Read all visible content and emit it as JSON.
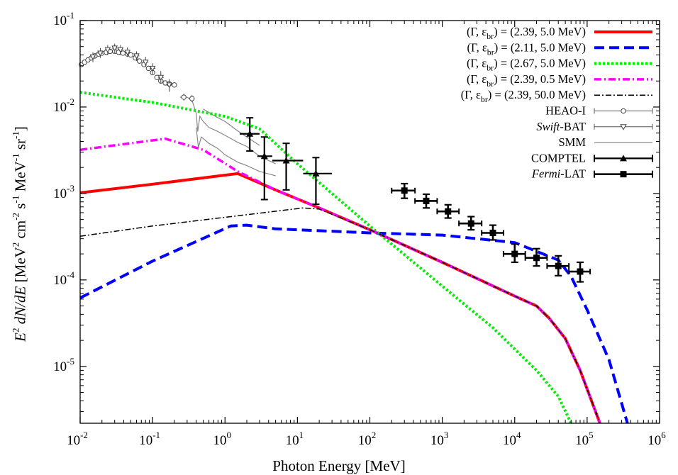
{
  "chart_data": {
    "type": "line",
    "title": "",
    "xlabel": "Photon Energy [MeV]",
    "ylabel_parts": [
      "E",
      "2",
      " dN/dE [MeV",
      "2",
      " cm",
      "-2",
      " s",
      "-1",
      " MeV",
      "-1",
      " sr",
      "-1",
      "]"
    ],
    "xscale": "log",
    "yscale": "log",
    "xlim": [
      0.01,
      1000000
    ],
    "ylim": [
      2.2e-06,
      0.1
    ],
    "x_ticks": [
      {
        "value": 0.01,
        "base": "10",
        "exp": "-2"
      },
      {
        "value": 0.1,
        "base": "10",
        "exp": "-1"
      },
      {
        "value": 1,
        "base": "10",
        "exp": "0"
      },
      {
        "value": 10,
        "base": "10",
        "exp": "1"
      },
      {
        "value": 100,
        "base": "10",
        "exp": "2"
      },
      {
        "value": 1000,
        "base": "10",
        "exp": "3"
      },
      {
        "value": 10000,
        "base": "10",
        "exp": "4"
      },
      {
        "value": 100000,
        "base": "10",
        "exp": "5"
      },
      {
        "value": 1000000,
        "base": "10",
        "exp": "6"
      }
    ],
    "y_ticks": [
      {
        "value": 1e-05,
        "base": "10",
        "exp": "-5"
      },
      {
        "value": 0.0001,
        "base": "10",
        "exp": "-4"
      },
      {
        "value": 0.001,
        "base": "10",
        "exp": "-3"
      },
      {
        "value": 0.01,
        "base": "10",
        "exp": "-2"
      },
      {
        "value": 0.1,
        "base": "10",
        "exp": "-1"
      }
    ],
    "legend_position": "top-right",
    "series": [
      {
        "name": "(Γ, ε_br) = (2.39, 5.0 MeV)",
        "label_head": "(Γ, ε",
        "label_sub": "br",
        "label_tail": ") = (2.39, 5.0 MeV)",
        "color": "#ff0000",
        "style": "solid",
        "width": 4,
        "points": [
          [
            0.01,
            0.00102
          ],
          [
            0.1,
            0.00128
          ],
          [
            1.5,
            0.0017
          ],
          [
            5,
            0.0011
          ],
          [
            20,
            0.00068
          ],
          [
            100,
            0.00038
          ],
          [
            1000,
            0.00016
          ],
          [
            10000,
            6.5e-05
          ],
          [
            20000,
            5e-05
          ],
          [
            30000,
            3.6e-05
          ],
          [
            50000,
            2.1e-05
          ],
          [
            80000,
            9e-06
          ],
          [
            150000,
            2.2e-06
          ]
        ]
      },
      {
        "name": "(Γ, ε_br) = (2.11, 5.0 MeV)",
        "label_head": "(Γ, ε",
        "label_sub": "br",
        "label_tail": ") = (2.11, 5.0 MeV)",
        "color": "#0000ff",
        "style": "dashed",
        "width": 4,
        "points": [
          [
            0.01,
            6.2e-05
          ],
          [
            0.1,
            0.000165
          ],
          [
            1.2,
            0.00042
          ],
          [
            2,
            0.00043
          ],
          [
            5,
            0.00039
          ],
          [
            100,
            0.00035
          ],
          [
            1000,
            0.00033
          ],
          [
            10000,
            0.00027
          ],
          [
            40000,
            0.00017
          ],
          [
            60000,
            0.00011
          ],
          [
            100000,
            4.5e-05
          ],
          [
            200000,
            1.2e-05
          ],
          [
            360000,
            2.2e-06
          ]
        ]
      },
      {
        "name": "(Γ, ε_br) = (2.67, 5.0 MeV)",
        "label_head": "(Γ, ε",
        "label_sub": "br",
        "label_tail": ") = (2.67, 5.0 MeV)",
        "color": "#00ee00",
        "style": "dotted",
        "width": 4,
        "points": [
          [
            0.01,
            0.0148
          ],
          [
            0.1,
            0.0113
          ],
          [
            1,
            0.0078
          ],
          [
            3,
            0.0056
          ],
          [
            10,
            0.0022
          ],
          [
            100,
            0.00042
          ],
          [
            1000,
            8.5e-05
          ],
          [
            5000,
            2.8e-05
          ],
          [
            20000,
            9e-06
          ],
          [
            40000,
            4.5e-06
          ],
          [
            60000,
            2.2e-06
          ]
        ]
      },
      {
        "name": "(Γ, ε_br) = (2.39, 0.5 MeV)",
        "label_head": "(Γ, ε",
        "label_sub": "br",
        "label_tail": ") = (2.39, 0.5 MeV)",
        "color": "#ff00ff",
        "style": "dashdot",
        "width": 3.5,
        "points": [
          [
            0.01,
            0.0032
          ],
          [
            0.15,
            0.0043
          ],
          [
            0.5,
            0.0032
          ],
          [
            1.5,
            0.0018
          ],
          [
            5,
            0.0011
          ],
          [
            20,
            0.00068
          ],
          [
            100,
            0.00038
          ],
          [
            1000,
            0.00016
          ],
          [
            10000,
            6.5e-05
          ],
          [
            20000,
            5e-05
          ],
          [
            30000,
            3.6e-05
          ],
          [
            50000,
            2.1e-05
          ],
          [
            80000,
            9e-06
          ],
          [
            150000,
            2.2e-06
          ]
        ]
      },
      {
        "name": "(Γ, ε_br) = (2.39, 50.0 MeV)",
        "label_head": "(Γ, ε",
        "label_sub": "br",
        "label_tail": ") = (2.39, 50.0 MeV)",
        "color": "#000000",
        "style": "dashdot",
        "width": 1.5,
        "points": [
          [
            0.01,
            0.00032
          ],
          [
            0.1,
            0.00042
          ],
          [
            1,
            0.00053
          ],
          [
            12,
            0.00068
          ],
          [
            20,
            0.00066
          ],
          [
            100,
            0.00038
          ],
          [
            1000,
            0.00016
          ],
          [
            10000,
            6.5e-05
          ],
          [
            20000,
            5e-05
          ],
          [
            30000,
            3.6e-05
          ],
          [
            50000,
            2.1e-05
          ],
          [
            80000,
            9e-06
          ],
          [
            150000,
            2.2e-06
          ]
        ]
      }
    ],
    "smm": {
      "name": "SMM",
      "color": "#888888",
      "curves": [
        [
          [
            0.3,
            0.013
          ],
          [
            0.35,
            0.012
          ],
          [
            0.4,
            0.0085
          ],
          [
            0.42,
            0.0052
          ],
          [
            0.45,
            0.0078
          ],
          [
            0.5,
            0.0068
          ],
          [
            0.6,
            0.0058
          ],
          [
            0.8,
            0.0052
          ],
          [
            1,
            0.0047
          ],
          [
            1.5,
            0.0039
          ],
          [
            2,
            0.0035
          ],
          [
            3,
            0.0027
          ],
          [
            5,
            0.0022
          ]
        ],
        [
          [
            0.4,
            0.0058
          ],
          [
            0.43,
            0.0034
          ],
          [
            0.47,
            0.0045
          ],
          [
            0.6,
            0.0038
          ],
          [
            0.8,
            0.0033
          ],
          [
            1,
            0.0028
          ],
          [
            1.5,
            0.0023
          ],
          [
            2,
            0.0021
          ],
          [
            3,
            0.0018
          ],
          [
            5,
            0.0016
          ]
        ],
        [
          [
            0.5,
            0.0095
          ],
          [
            0.7,
            0.008
          ],
          [
            1,
            0.0068
          ],
          [
            1.5,
            0.0053
          ],
          [
            2,
            0.0045
          ],
          [
            3,
            0.0036
          ]
        ]
      ]
    },
    "heao": {
      "name": "HEAO-I",
      "points": [
        {
          "x": 0.0104,
          "y": 0.031
        },
        {
          "x": 0.0115,
          "y": 0.033
        },
        {
          "x": 0.0128,
          "y": 0.035
        },
        {
          "x": 0.0143,
          "y": 0.037
        },
        {
          "x": 0.016,
          "y": 0.039
        },
        {
          "x": 0.018,
          "y": 0.041
        },
        {
          "x": 0.02,
          "y": 0.042
        },
        {
          "x": 0.023,
          "y": 0.043
        },
        {
          "x": 0.026,
          "y": 0.044
        },
        {
          "x": 0.03,
          "y": 0.044
        },
        {
          "x": 0.034,
          "y": 0.043
        },
        {
          "x": 0.039,
          "y": 0.042
        },
        {
          "x": 0.045,
          "y": 0.041
        },
        {
          "x": 0.05,
          "y": 0.04
        },
        {
          "x": 0.058,
          "y": 0.037
        },
        {
          "x": 0.066,
          "y": 0.034
        },
        {
          "x": 0.076,
          "y": 0.031
        },
        {
          "x": 0.088,
          "y": 0.028
        },
        {
          "x": 0.1,
          "y": 0.025
        },
        {
          "x": 0.115,
          "y": 0.022
        },
        {
          "x": 0.13,
          "y": 0.02
        },
        {
          "x": 0.15,
          "y": 0.019
        },
        {
          "x": 0.17,
          "y": 0.0185
        },
        {
          "x": 0.2,
          "y": 0.018
        },
        {
          "x": 0.27,
          "y": 0.013,
          "xerr": [
            0.24,
            0.3
          ]
        },
        {
          "x": 0.35,
          "y": 0.0125,
          "xerr": [
            0.32,
            0.38
          ]
        }
      ]
    },
    "swift": {
      "name": "Swift-BAT",
      "name_italic": "Swift",
      "name_rest": "-BAT",
      "points": [
        {
          "x": 0.015,
          "y": 0.038,
          "err": [
            0.033,
            0.043
          ]
        },
        {
          "x": 0.019,
          "y": 0.042,
          "err": [
            0.037,
            0.048
          ]
        },
        {
          "x": 0.024,
          "y": 0.046,
          "err": [
            0.04,
            0.052
          ]
        },
        {
          "x": 0.03,
          "y": 0.048,
          "err": [
            0.042,
            0.054
          ]
        },
        {
          "x": 0.036,
          "y": 0.046,
          "err": [
            0.04,
            0.052
          ]
        },
        {
          "x": 0.045,
          "y": 0.043,
          "err": [
            0.038,
            0.049
          ]
        },
        {
          "x": 0.06,
          "y": 0.039,
          "err": [
            0.034,
            0.044
          ]
        },
        {
          "x": 0.08,
          "y": 0.033,
          "err": [
            0.029,
            0.038
          ]
        },
        {
          "x": 0.1,
          "y": 0.028,
          "err": [
            0.024,
            0.032
          ]
        },
        {
          "x": 0.13,
          "y": 0.022,
          "err": [
            0.019,
            0.026
          ]
        },
        {
          "x": 0.17,
          "y": 0.018,
          "err": [
            0.015,
            0.021
          ]
        }
      ]
    },
    "comptel": {
      "name": "COMPTEL",
      "points": [
        {
          "x": 2.2,
          "y": 0.0049,
          "xerr": [
            1.6,
            3
          ],
          "yerr": [
            0.0031,
            0.0075
          ]
        },
        {
          "x": 3.5,
          "y": 0.0027,
          "xerr": [
            2.8,
            4.5
          ],
          "yerr": [
            0.00085,
            0.0045
          ]
        },
        {
          "x": 7,
          "y": 0.0024,
          "xerr": [
            4.5,
            12
          ],
          "yerr": [
            0.0011,
            0.0038
          ]
        },
        {
          "x": 18,
          "y": 0.0017,
          "xerr": [
            12,
            30
          ],
          "yerr": [
            0.00075,
            0.0026
          ]
        }
      ]
    },
    "fermi": {
      "name": "Fermi-LAT",
      "name_italic": "Fermi",
      "name_rest": "-LAT",
      "points": [
        {
          "x": 300,
          "y": 0.00108,
          "xerr": [
            200,
            420
          ],
          "yerr": [
            0.00088,
            0.0013
          ]
        },
        {
          "x": 600,
          "y": 0.00082,
          "xerr": [
            420,
            850
          ],
          "yerr": [
            0.00068,
            0.00098
          ]
        },
        {
          "x": 1200,
          "y": 0.00062,
          "xerr": [
            850,
            1700
          ],
          "yerr": [
            0.00052,
            0.00074
          ]
        },
        {
          "x": 2500,
          "y": 0.00045,
          "xerr": [
            1700,
            3500
          ],
          "yerr": [
            0.00038,
            0.00054
          ]
        },
        {
          "x": 5000,
          "y": 0.00035,
          "xerr": [
            3500,
            7000
          ],
          "yerr": [
            0.00029,
            0.00043
          ]
        },
        {
          "x": 10000,
          "y": 0.0002,
          "xerr": [
            7000,
            14000
          ],
          "yerr": [
            0.00016,
            0.00026
          ]
        },
        {
          "x": 20000,
          "y": 0.00018,
          "xerr": [
            14000,
            28000
          ],
          "yerr": [
            0.000145,
            0.00023
          ]
        },
        {
          "x": 40000,
          "y": 0.000145,
          "xerr": [
            28000,
            56000
          ],
          "yerr": [
            0.000112,
            0.00019
          ]
        },
        {
          "x": 80000,
          "y": 0.000125,
          "xerr": [
            56000,
            110000
          ],
          "yerr": [
            9.5e-05,
            0.00016
          ]
        }
      ]
    }
  }
}
